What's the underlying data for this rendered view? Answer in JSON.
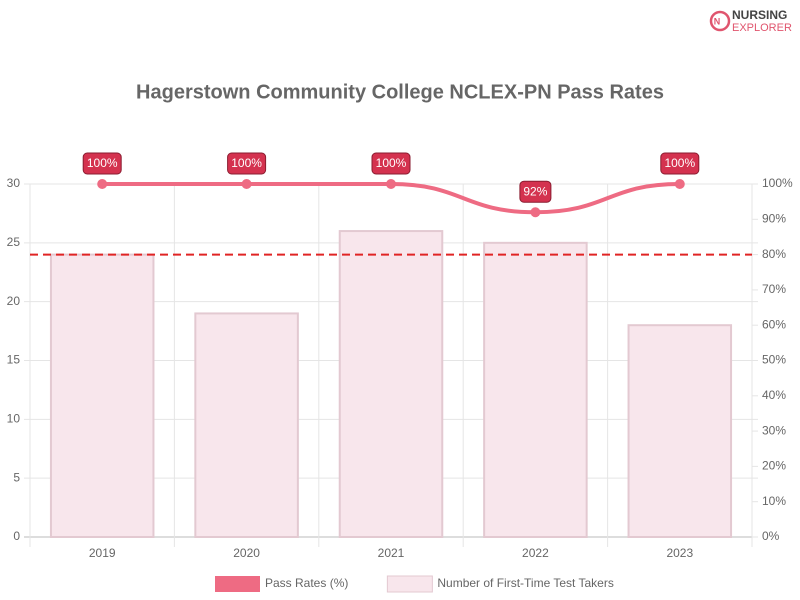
{
  "logo": {
    "line1": "NURSING",
    "line2": "EXPLORER"
  },
  "chart_data": {
    "type": "bar",
    "title": "Hagerstown Community College NCLEX-PN Pass Rates",
    "categories": [
      "2019",
      "2020",
      "2021",
      "2022",
      "2023"
    ],
    "series": [
      {
        "name": "Pass Rates (%)",
        "type": "line",
        "axis": "y2",
        "color": "#ee6b83",
        "values": [
          100,
          100,
          100,
          92,
          100
        ],
        "value_labels": [
          "100%",
          "100%",
          "100%",
          "92%",
          "100%"
        ]
      },
      {
        "name": "Number of First-Time Test Takers",
        "type": "bar",
        "color": "#f8e6ec",
        "values": [
          24,
          19,
          26,
          25,
          18
        ]
      }
    ],
    "ylim": [
      0,
      30
    ],
    "yticks": [
      0,
      5,
      10,
      15,
      20,
      25,
      30
    ],
    "y2lim": [
      0,
      100
    ],
    "y2ticks": [
      {
        "value": 0,
        "label": "0%"
      },
      {
        "value": 10,
        "label": "10%"
      },
      {
        "value": 20,
        "label": "20%"
      },
      {
        "value": 30,
        "label": "30%"
      },
      {
        "value": 40,
        "label": "40%"
      },
      {
        "value": 50,
        "label": "50%"
      },
      {
        "value": 60,
        "label": "60%"
      },
      {
        "value": 70,
        "label": "70%"
      },
      {
        "value": 80,
        "label": "80%"
      },
      {
        "value": 90,
        "label": "90%"
      },
      {
        "value": 100,
        "label": "100%"
      }
    ],
    "reference_line": {
      "value": 80,
      "axis": "y2",
      "color": "#e02424"
    },
    "grid": true,
    "legend": "bottom"
  }
}
